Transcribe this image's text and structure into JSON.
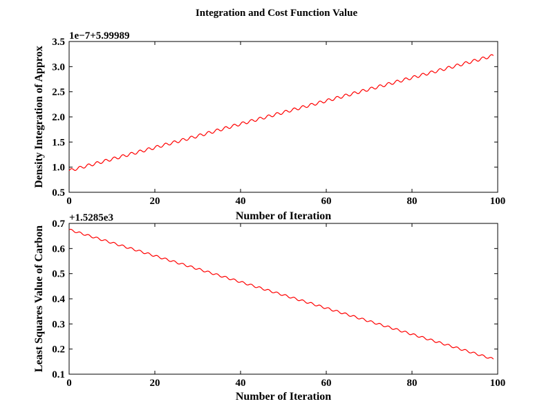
{
  "title": "Integration and Cost Function Value",
  "chart_data": [
    {
      "type": "line",
      "xlabel": "Number of Iteration",
      "ylabel": "Density Integration of Approx",
      "offset_label": "1e−7+5.99989",
      "xlim": [
        0,
        100
      ],
      "ylim": [
        0.5,
        3.5
      ],
      "xticks": [
        "0",
        "20",
        "40",
        "60",
        "80",
        "100"
      ],
      "yticks": [
        "0.5",
        "1.0",
        "1.5",
        "2.0",
        "2.5",
        "3.0",
        "3.5"
      ],
      "series": [
        {
          "color": "#ff0000",
          "x": [
            0,
            10,
            20,
            30,
            40,
            50,
            60,
            70,
            80,
            90,
            99
          ],
          "y": [
            0.93,
            1.16,
            1.39,
            1.62,
            1.86,
            2.09,
            2.32,
            2.55,
            2.78,
            3.01,
            3.22
          ],
          "wiggle_amplitude": 0.03,
          "wiggle_period": 2
        }
      ]
    },
    {
      "type": "line",
      "xlabel": "Number of Iteration",
      "ylabel": "Least Squares Value of Carbon",
      "offset_label": "+1.5285e3",
      "xlim": [
        0,
        100
      ],
      "ylim": [
        0.1,
        0.7
      ],
      "xticks": [
        "0",
        "20",
        "40",
        "60",
        "80",
        "100"
      ],
      "yticks": [
        "0.1",
        "0.2",
        "0.3",
        "0.4",
        "0.5",
        "0.6",
        "0.7"
      ],
      "series": [
        {
          "color": "#ff0000",
          "x": [
            0,
            10,
            20,
            30,
            40,
            50,
            60,
            70,
            80,
            90,
            99
          ],
          "y": [
            0.675,
            0.623,
            0.571,
            0.519,
            0.467,
            0.415,
            0.363,
            0.311,
            0.259,
            0.207,
            0.16
          ],
          "wiggle_amplitude": 0.004,
          "wiggle_period": 2
        }
      ]
    }
  ]
}
